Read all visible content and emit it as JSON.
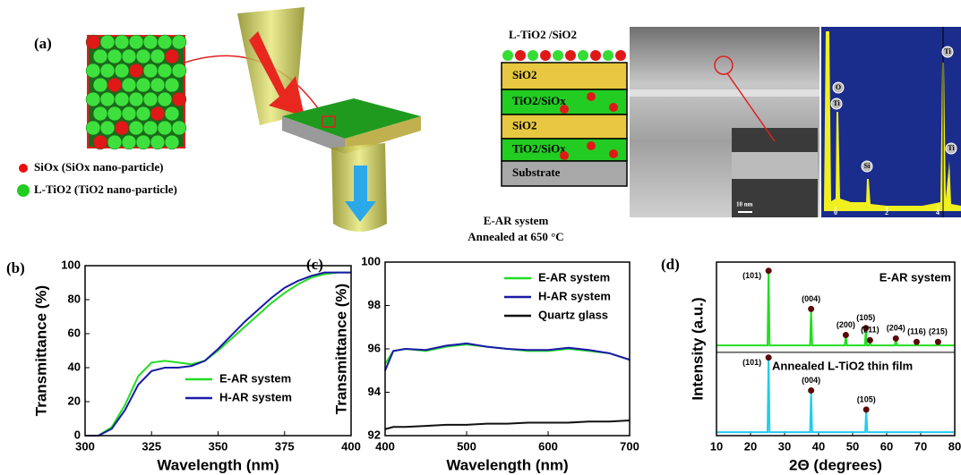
{
  "diagram": {
    "label": "(a)",
    "legend": [
      "SiOx (SiOx nano-particle)",
      "L-TiO2 (TiO2 nano-particle)"
    ],
    "stack_title": "L-TiO2 /SiO2",
    "layers": [
      "SiO2",
      "TiO2/SiOx",
      "SiO2",
      "TiO2/SiOx",
      "Substrate"
    ],
    "caption": [
      "E-AR system",
      "Annealed at 650 °C"
    ],
    "scale_bar": "10 nm",
    "eds_peaks": [
      "O",
      "Ti",
      "Si",
      "Ti",
      "Ti"
    ],
    "eds_ticks": [
      0,
      2,
      4
    ]
  },
  "chart_data": [
    {
      "type": "line",
      "panel_label": "(b)",
      "x_label": "Wavelength (nm)",
      "y_label": "Transmittance (%)",
      "legend": "lower right",
      "xlim": [
        300,
        400
      ],
      "ylim": [
        0,
        100
      ],
      "xticks": [
        300,
        325,
        350,
        375,
        400
      ],
      "yticks": [
        0,
        20,
        40,
        60,
        80,
        100
      ],
      "x": [
        300,
        305,
        310,
        315,
        320,
        325,
        330,
        335,
        340,
        345,
        350,
        355,
        360,
        365,
        370,
        375,
        380,
        385,
        390,
        395,
        400
      ],
      "series": [
        {
          "name": "E-AR system",
          "color": "#22dd22",
          "values": [
            0,
            0,
            5,
            18,
            35,
            43,
            44,
            43,
            42,
            44,
            50,
            57,
            64,
            71,
            78,
            84,
            89,
            93,
            95,
            96,
            96
          ]
        },
        {
          "name": "H-AR system",
          "color": "#1a1aa8",
          "values": [
            0,
            0,
            4,
            15,
            30,
            38,
            40,
            40,
            41,
            44,
            51,
            59,
            67,
            74,
            81,
            87,
            91,
            94,
            96,
            96,
            96
          ]
        }
      ]
    },
    {
      "type": "line",
      "panel_label": "(c)",
      "x_label": "Wavelength (nm)",
      "y_label": "Transmittance (%)",
      "legend": "upper right",
      "xlim": [
        400,
        700
      ],
      "ylim": [
        92,
        100
      ],
      "xticks": [
        400,
        500,
        600,
        700
      ],
      "yticks": [
        92,
        94,
        96,
        98,
        100
      ],
      "x": [
        400,
        410,
        425,
        450,
        475,
        500,
        525,
        550,
        575,
        600,
        625,
        650,
        675,
        700
      ],
      "series": [
        {
          "name": "E-AR system",
          "color": "#22dd22",
          "values": [
            95.3,
            95.9,
            96.0,
            95.9,
            96.1,
            96.2,
            96.1,
            96.0,
            95.9,
            95.9,
            96.0,
            95.9,
            95.8,
            95.5
          ]
        },
        {
          "name": "H-AR system",
          "color": "#1a1aa8",
          "values": [
            95.0,
            95.9,
            96.0,
            95.95,
            96.15,
            96.25,
            96.1,
            96.0,
            95.95,
            95.95,
            96.05,
            95.95,
            95.8,
            95.5
          ]
        },
        {
          "name": "Quartz glass",
          "color": "#111111",
          "values": [
            92.3,
            92.4,
            92.4,
            92.45,
            92.5,
            92.5,
            92.55,
            92.55,
            92.6,
            92.6,
            92.6,
            92.65,
            92.65,
            92.7
          ]
        }
      ]
    },
    {
      "type": "xrd",
      "panel_label": "(d)",
      "x_label": "2Θ (degrees)",
      "y_label": "Intensity (a.u.)",
      "xlim": [
        10,
        80
      ],
      "ylim": [
        0,
        100
      ],
      "xticks": [
        10,
        20,
        30,
        40,
        50,
        60,
        70,
        80
      ],
      "series": [
        {
          "name": "E-AR system",
          "color": "#22dd22",
          "x": [
            10,
            25.0,
            25.3,
            25.6,
            37.5,
            37.8,
            38.1,
            47.7,
            48.0,
            48.3,
            53.6,
            53.9,
            54.2,
            54.8,
            55.1,
            55.4,
            62.4,
            62.7,
            63.0,
            68.5,
            68.8,
            69.1,
            74.8,
            75.1,
            75.4,
            80
          ],
          "values": [
            52,
            52,
            95,
            52,
            52,
            73,
            52,
            52,
            58,
            52,
            52,
            62,
            52,
            52,
            55,
            52,
            52,
            56,
            52,
            52,
            54,
            52,
            52,
            54,
            52,
            52
          ]
        },
        {
          "name": "Annealed L-TiO2 thin film",
          "color": "#22ccee",
          "x": [
            10,
            25.0,
            25.3,
            25.6,
            37.5,
            37.8,
            38.1,
            53.7,
            54.0,
            54.3,
            80
          ],
          "values": [
            2,
            2,
            45,
            2,
            2,
            26,
            2,
            2,
            15,
            2,
            2
          ]
        }
      ],
      "peaks": [
        {
          "label": "(101)",
          "x": 25.3,
          "y": 95
        },
        {
          "label": "(004)",
          "x": 37.8,
          "y": 73
        },
        {
          "label": "(200)",
          "x": 48.0,
          "y": 58
        },
        {
          "label": "(105)",
          "x": 53.9,
          "y": 62
        },
        {
          "label": "(211)",
          "x": 55.1,
          "y": 55
        },
        {
          "label": "(204)",
          "x": 62.7,
          "y": 56
        },
        {
          "label": "(116)",
          "x": 68.8,
          "y": 54
        },
        {
          "label": "(215)",
          "x": 75.1,
          "y": 54
        },
        {
          "label": "(101)",
          "x": 25.3,
          "y": 45
        },
        {
          "label": "(004)",
          "x": 37.8,
          "y": 26
        },
        {
          "label": "(105)",
          "x": 54.0,
          "y": 15
        }
      ]
    }
  ]
}
